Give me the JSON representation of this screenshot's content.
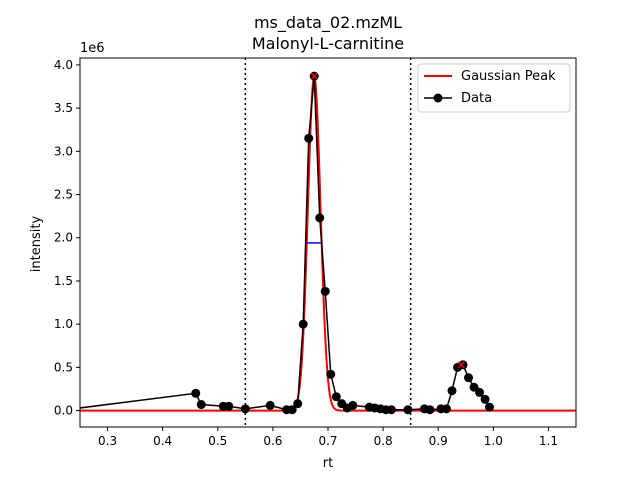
{
  "chart_data": {
    "type": "line",
    "title": "ms_data_02.mzML",
    "subtitle": "Malonyl-L-carnitine",
    "xlabel": "rt",
    "ylabel": "intensity",
    "y_offset_label": "1e6",
    "xlim": [
      0.25,
      1.15
    ],
    "ylim": [
      -0.19,
      4.08
    ],
    "y_scale_factor": 1000000,
    "xticks": [
      0.3,
      0.4,
      0.5,
      0.6,
      0.7,
      0.8,
      0.9,
      1.0,
      1.1
    ],
    "xtick_labels": [
      "0.3",
      "0.4",
      "0.5",
      "0.6",
      "0.7",
      "0.8",
      "0.9",
      "1.0",
      "1.1"
    ],
    "yticks": [
      0,
      0.5,
      1.0,
      1.5,
      2.0,
      2.5,
      3.0,
      3.5,
      4.0
    ],
    "ytick_labels": [
      "0.0",
      "0.5",
      "1.0",
      "1.5",
      "2.0",
      "2.5",
      "3.0",
      "3.5",
      "4.0"
    ],
    "grid": false,
    "legend": {
      "placement": "top-right",
      "entries": [
        {
          "label": "Gaussian Peak",
          "color": "#ff0000",
          "style": "line"
        },
        {
          "label": "Data",
          "color": "#000000",
          "style": "line-marker"
        }
      ]
    },
    "vlines": [
      0.55,
      0.85
    ],
    "fwhm": {
      "x_start": 0.661,
      "x_end": 0.688,
      "y": 1.94,
      "color": "#0000ff"
    },
    "peak_markers": [
      {
        "x": 0.675,
        "y": 3.87,
        "color": "#ff0000"
      },
      {
        "x": 0.942,
        "y": 0.53,
        "color": "#ff0000"
      }
    ],
    "series": [
      {
        "name": "Gaussian Peak",
        "color": "#ff0000",
        "gaussian": {
          "center": 0.675,
          "amplitude": 3.87,
          "sigma": 0.0115
        },
        "x_range": [
          0.25,
          1.15
        ]
      },
      {
        "name": "Data",
        "color": "#000000",
        "points": [
          [
            0.15,
            -0.05
          ],
          [
            0.46,
            0.2
          ],
          [
            0.47,
            0.07
          ],
          [
            0.51,
            0.05
          ],
          [
            0.52,
            0.05
          ],
          [
            0.55,
            0.02
          ],
          [
            0.595,
            0.06
          ],
          [
            0.625,
            0.01
          ],
          [
            0.635,
            0.01
          ],
          [
            0.645,
            0.08
          ],
          [
            0.655,
            1.0
          ],
          [
            0.665,
            3.15
          ],
          [
            0.675,
            3.87
          ],
          [
            0.685,
            2.23
          ],
          [
            0.695,
            1.38
          ],
          [
            0.705,
            0.42
          ],
          [
            0.715,
            0.16
          ],
          [
            0.725,
            0.08
          ],
          [
            0.735,
            0.03
          ],
          [
            0.745,
            0.06
          ],
          [
            0.775,
            0.04
          ],
          [
            0.785,
            0.03
          ],
          [
            0.795,
            0.02
          ],
          [
            0.805,
            0.01
          ],
          [
            0.815,
            0.01
          ],
          [
            0.845,
            0.01
          ],
          [
            0.875,
            0.02
          ],
          [
            0.885,
            0.01
          ],
          [
            0.905,
            0.02
          ],
          [
            0.915,
            0.02
          ],
          [
            0.925,
            0.23
          ],
          [
            0.935,
            0.5
          ],
          [
            0.945,
            0.53
          ],
          [
            0.955,
            0.38
          ],
          [
            0.965,
            0.27
          ],
          [
            0.975,
            0.21
          ],
          [
            0.985,
            0.13
          ],
          [
            0.993,
            0.04
          ]
        ]
      }
    ]
  }
}
